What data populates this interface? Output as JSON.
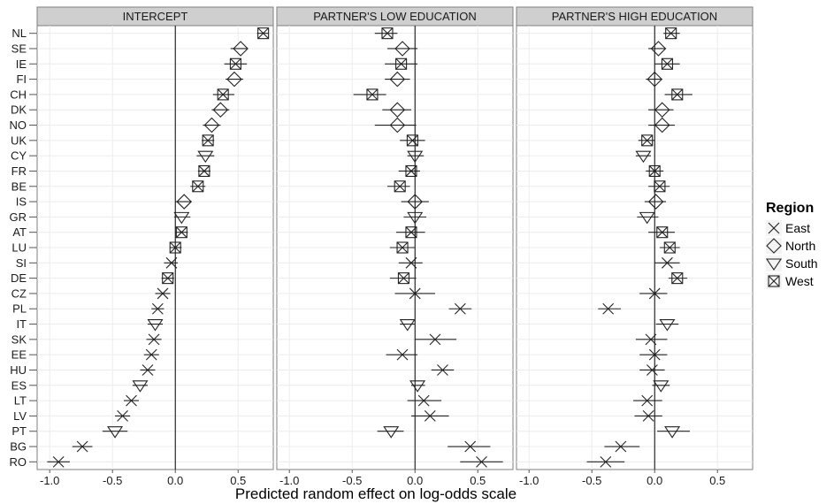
{
  "chart_data": {
    "type": "scatter",
    "title": "",
    "xlabel": "Predicted random effect on log-odds scale",
    "ylabel": "",
    "xlim": [
      -1.1,
      0.78
    ],
    "xticks": [
      -1.0,
      -0.5,
      0.0,
      0.5
    ],
    "xtick_labels": [
      "-1.0",
      "-0.5",
      "0.0",
      "0.5"
    ],
    "grid": true,
    "legend": {
      "title": "Region",
      "placement": "right",
      "entries": [
        {
          "name": "East",
          "marker": "x"
        },
        {
          "name": "North",
          "marker": "diamond"
        },
        {
          "name": "South",
          "marker": "triangle-down"
        },
        {
          "name": "West",
          "marker": "square-x"
        }
      ]
    },
    "countries": [
      {
        "code": "NL",
        "region": "West"
      },
      {
        "code": "SE",
        "region": "North"
      },
      {
        "code": "IE",
        "region": "West"
      },
      {
        "code": "FI",
        "region": "North"
      },
      {
        "code": "CH",
        "region": "West"
      },
      {
        "code": "DK",
        "region": "North"
      },
      {
        "code": "NO",
        "region": "North"
      },
      {
        "code": "UK",
        "region": "West"
      },
      {
        "code": "CY",
        "region": "South"
      },
      {
        "code": "FR",
        "region": "West"
      },
      {
        "code": "BE",
        "region": "West"
      },
      {
        "code": "IS",
        "region": "North"
      },
      {
        "code": "GR",
        "region": "South"
      },
      {
        "code": "AT",
        "region": "West"
      },
      {
        "code": "LU",
        "region": "West"
      },
      {
        "code": "SI",
        "region": "East"
      },
      {
        "code": "DE",
        "region": "West"
      },
      {
        "code": "CZ",
        "region": "East"
      },
      {
        "code": "PL",
        "region": "East"
      },
      {
        "code": "IT",
        "region": "South"
      },
      {
        "code": "SK",
        "region": "East"
      },
      {
        "code": "EE",
        "region": "East"
      },
      {
        "code": "HU",
        "region": "East"
      },
      {
        "code": "ES",
        "region": "South"
      },
      {
        "code": "LT",
        "region": "East"
      },
      {
        "code": "LV",
        "region": "East"
      },
      {
        "code": "PT",
        "region": "South"
      },
      {
        "code": "BG",
        "region": "East"
      },
      {
        "code": "RO",
        "region": "East"
      }
    ],
    "panels": [
      {
        "name": "INTERCEPT",
        "estimates": [
          0.7,
          0.52,
          0.48,
          0.47,
          0.38,
          0.36,
          0.29,
          0.26,
          0.24,
          0.23,
          0.18,
          0.07,
          0.05,
          0.05,
          0.0,
          -0.03,
          -0.06,
          -0.1,
          -0.14,
          -0.16,
          -0.17,
          -0.19,
          -0.22,
          -0.28,
          -0.35,
          -0.42,
          -0.48,
          -0.74,
          -0.93
        ],
        "ci_low": [
          0.65,
          0.44,
          0.39,
          0.4,
          0.3,
          0.29,
          0.22,
          0.21,
          0.17,
          0.18,
          0.12,
          0.0,
          -0.01,
          0.0,
          -0.04,
          -0.09,
          -0.11,
          -0.16,
          -0.19,
          -0.22,
          -0.23,
          -0.25,
          -0.28,
          -0.34,
          -0.41,
          -0.48,
          -0.58,
          -0.82,
          -1.02
        ],
        "ci_high": [
          0.74,
          0.57,
          0.57,
          0.54,
          0.47,
          0.43,
          0.36,
          0.31,
          0.31,
          0.28,
          0.24,
          0.13,
          0.12,
          0.1,
          0.05,
          0.02,
          -0.01,
          -0.04,
          -0.09,
          -0.1,
          -0.11,
          -0.13,
          -0.16,
          -0.22,
          -0.29,
          -0.36,
          -0.38,
          -0.66,
          -0.84
        ]
      },
      {
        "name": "PARTNER'S LOW EDUCATION",
        "estimates": [
          -0.22,
          -0.1,
          -0.11,
          -0.14,
          -0.34,
          -0.14,
          -0.14,
          -0.02,
          0.0,
          -0.03,
          -0.12,
          0.0,
          0.0,
          -0.03,
          -0.1,
          -0.03,
          -0.09,
          0.0,
          0.36,
          -0.06,
          0.16,
          -0.1,
          0.22,
          0.02,
          0.07,
          0.12,
          -0.19,
          0.44,
          0.53
        ],
        "ci_low": [
          -0.32,
          -0.22,
          -0.24,
          -0.24,
          -0.49,
          -0.26,
          -0.32,
          -0.12,
          -0.06,
          -0.13,
          -0.22,
          -0.11,
          -0.09,
          -0.15,
          -0.2,
          -0.13,
          -0.2,
          -0.16,
          0.27,
          -0.12,
          0.0,
          -0.23,
          0.13,
          -0.03,
          -0.06,
          -0.03,
          -0.3,
          0.26,
          0.36
        ],
        "ci_high": [
          -0.14,
          0.02,
          0.02,
          -0.04,
          -0.23,
          -0.03,
          0.01,
          0.08,
          0.07,
          0.04,
          -0.04,
          0.11,
          0.09,
          0.08,
          0.0,
          0.06,
          0.01,
          0.16,
          0.45,
          0.0,
          0.33,
          0.02,
          0.31,
          0.08,
          0.21,
          0.27,
          -0.09,
          0.6,
          0.7
        ]
      },
      {
        "name": "PARTNER'S HIGH EDUCATION",
        "estimates": [
          0.13,
          0.03,
          0.1,
          0.0,
          0.18,
          0.06,
          0.06,
          -0.06,
          -0.09,
          0.0,
          0.04,
          0.01,
          -0.06,
          0.06,
          0.12,
          0.1,
          0.18,
          0.0,
          -0.37,
          0.1,
          -0.03,
          0.0,
          -0.02,
          0.05,
          -0.06,
          -0.05,
          0.14,
          -0.27,
          -0.39
        ],
        "ci_low": [
          0.07,
          -0.05,
          0.0,
          -0.07,
          0.08,
          -0.05,
          -0.05,
          -0.13,
          -0.15,
          -0.07,
          -0.05,
          -0.08,
          -0.14,
          -0.05,
          0.04,
          0.0,
          0.11,
          -0.12,
          -0.45,
          0.01,
          -0.15,
          -0.12,
          -0.12,
          -0.02,
          -0.17,
          -0.16,
          0.02,
          -0.4,
          -0.54
        ],
        "ci_high": [
          0.2,
          0.09,
          0.2,
          0.06,
          0.3,
          0.15,
          0.16,
          0.0,
          -0.03,
          0.07,
          0.12,
          0.09,
          0.03,
          0.16,
          0.2,
          0.2,
          0.26,
          0.1,
          -0.27,
          0.19,
          0.1,
          0.1,
          0.08,
          0.12,
          0.06,
          0.06,
          0.28,
          -0.12,
          -0.24
        ]
      }
    ]
  }
}
